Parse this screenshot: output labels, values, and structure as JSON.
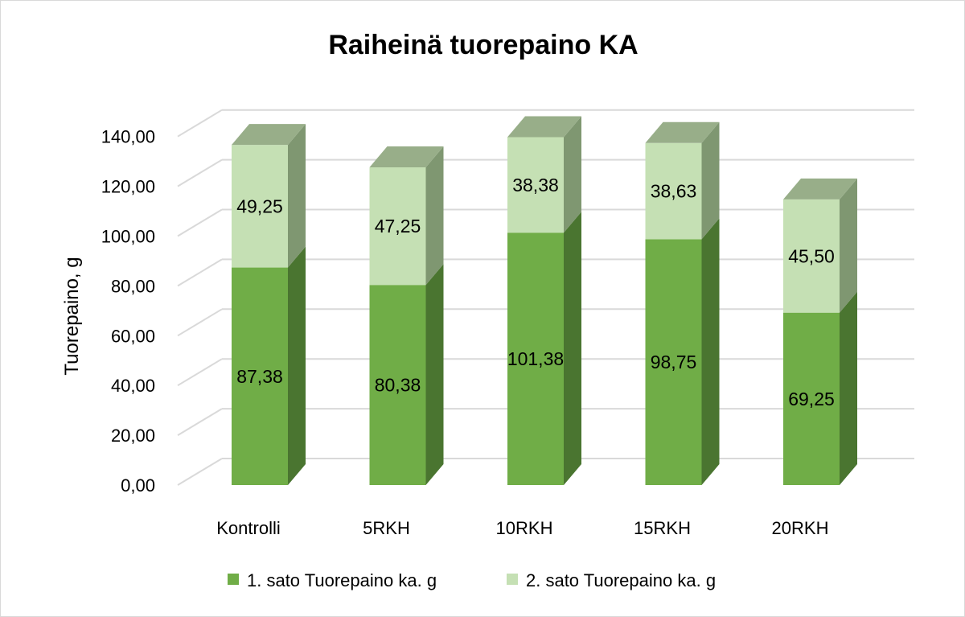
{
  "chart_data": {
    "type": "bar",
    "stacked": true,
    "style": "3d-column",
    "title": "Raiheinä tuorepaino KA",
    "ylabel": "Tuorepaino, g",
    "xlabel": "",
    "ylim": [
      0,
      140
    ],
    "ytick_step": 20,
    "ytick_labels": [
      "0,00",
      "20,00",
      "40,00",
      "60,00",
      "80,00",
      "100,00",
      "120,00",
      "140,00"
    ],
    "grid": true,
    "legend_position": "bottom",
    "categories": [
      "Kontrolli",
      "5RKH",
      "10RKH",
      "15RKH",
      "20RKH"
    ],
    "series": [
      {
        "name": "1. sato Tuorepaino ka. g",
        "values": [
          87.38,
          80.38,
          101.38,
          98.75,
          69.25
        ],
        "labels": [
          "87,38",
          "80,38",
          "101,38",
          "98,75",
          "69,25"
        ],
        "color": "#70ad47",
        "side_color": "#4a7530",
        "top_color": "#5f9a3c"
      },
      {
        "name": "2. sato Tuorepaino ka. g",
        "values": [
          49.25,
          47.25,
          38.38,
          38.63,
          45.5
        ],
        "labels": [
          "49,25",
          "47,25",
          "38,38",
          "38,63",
          "45,50"
        ],
        "color": "#c5e0b4",
        "side_color": "#7f9771",
        "top_color": "#98ae89"
      }
    ]
  }
}
